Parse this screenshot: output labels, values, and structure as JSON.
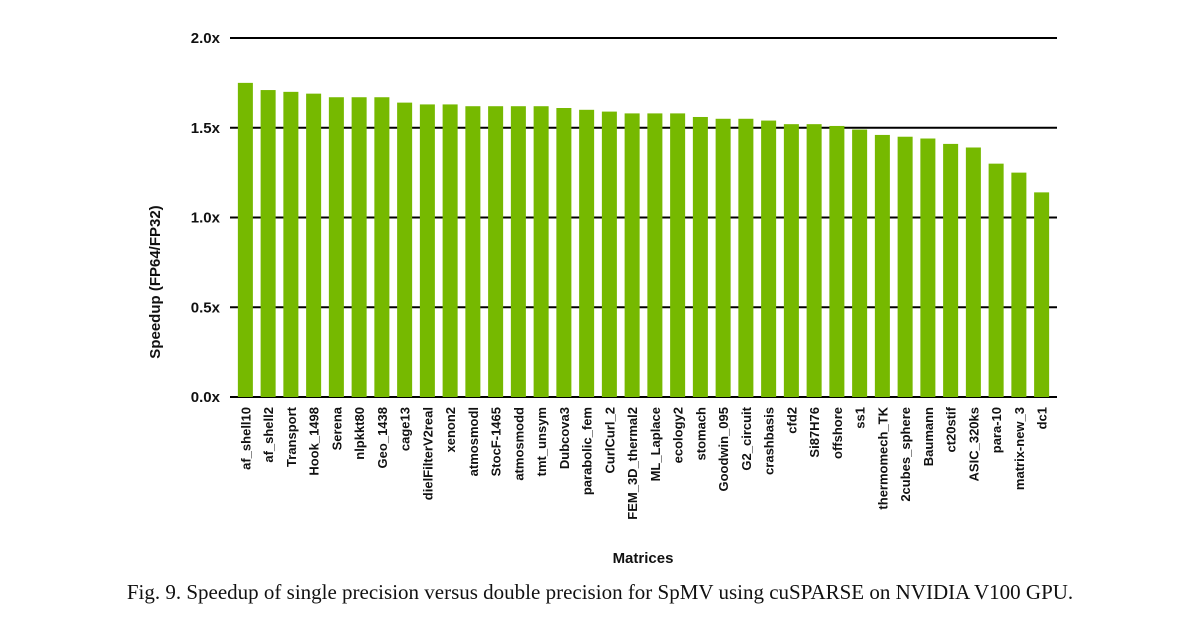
{
  "chart_data": {
    "type": "bar",
    "xlabel": "Matrices",
    "ylabel": "Speedup (FP64/FP32)",
    "ylim": [
      0,
      2.0
    ],
    "yticks": [
      {
        "value": 0.0,
        "label": "0.0x"
      },
      {
        "value": 0.5,
        "label": "0.5x"
      },
      {
        "value": 1.0,
        "label": "1.0x"
      },
      {
        "value": 1.5,
        "label": "1.5x"
      },
      {
        "value": 2.0,
        "label": "2.0x"
      }
    ],
    "grid": true,
    "bar_color": "#76b900",
    "categories": [
      "af_shell10",
      "af_shell2",
      "Transport",
      "Hook_1498",
      "Serena",
      "nlpkkt80",
      "Geo_1438",
      "cage13",
      "dielFilterV2real",
      "xenon2",
      "atmosmodl",
      "StocF-1465",
      "atmosmodd",
      "tmt_unsym",
      "Dubcova3",
      "parabolic_fem",
      "CurlCurl_2",
      "FEM_3D_thermal2",
      "ML_Laplace",
      "ecology2",
      "stomach",
      "Goodwin_095",
      "G2_circuit",
      "crashbasis",
      "cfd2",
      "Si87H76",
      "offshore",
      "ss1",
      "thermomech_TK",
      "2cubes_sphere",
      "Baumann",
      "ct20stif",
      "ASIC_320ks",
      "para-10",
      "matrix-new_3",
      "dc1"
    ],
    "values": [
      1.75,
      1.71,
      1.7,
      1.69,
      1.67,
      1.67,
      1.67,
      1.64,
      1.63,
      1.63,
      1.62,
      1.62,
      1.62,
      1.62,
      1.61,
      1.6,
      1.59,
      1.58,
      1.58,
      1.58,
      1.56,
      1.55,
      1.55,
      1.54,
      1.52,
      1.52,
      1.51,
      1.49,
      1.46,
      1.45,
      1.44,
      1.41,
      1.39,
      1.3,
      1.25,
      1.14
    ]
  },
  "caption": "Fig. 9.  Speedup of single precision versus double precision for SpMV using cuSPARSE on NVIDIA V100 GPU."
}
